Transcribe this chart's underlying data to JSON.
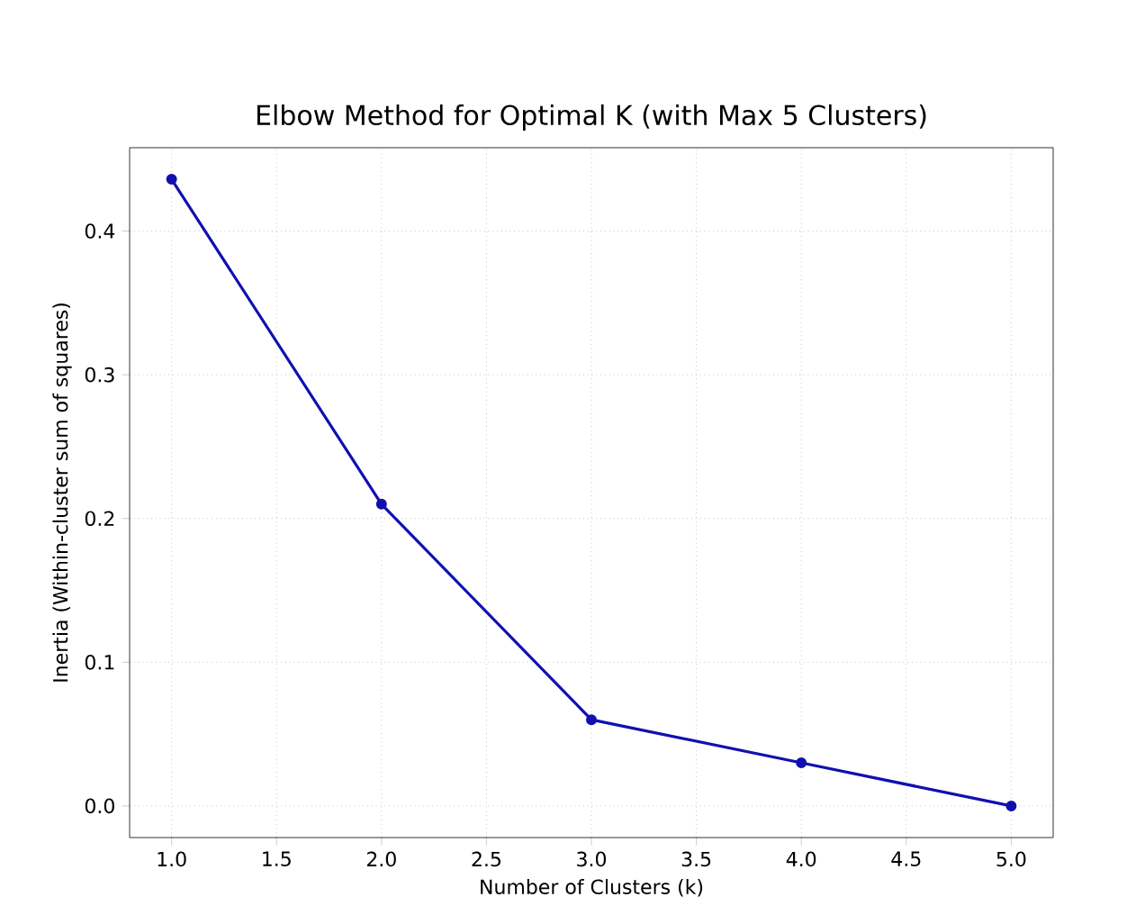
{
  "chart_data": {
    "type": "line",
    "title": "Elbow Method for Optimal K (with Max 5 Clusters)",
    "xlabel": "Number of Clusters (k)",
    "ylabel": "Inertia (Within-cluster sum of squares)",
    "x": [
      1,
      2,
      3,
      4,
      5
    ],
    "series": [
      {
        "color": "#1010b0",
        "values": [
          0.436,
          0.21,
          0.06,
          0.03,
          0.0
        ]
      }
    ],
    "xlim": [
      0.8,
      5.2
    ],
    "ylim": [
      -0.022,
      0.458
    ],
    "xticks": [
      {
        "value": 1,
        "label": "1.0"
      },
      {
        "value": 1.5,
        "label": "1.5"
      },
      {
        "value": 2,
        "label": "2.0"
      },
      {
        "value": 2.5,
        "label": "2.5"
      },
      {
        "value": 3,
        "label": "3.0"
      },
      {
        "value": 3.5,
        "label": "3.5"
      },
      {
        "value": 4,
        "label": "4.0"
      },
      {
        "value": 4.5,
        "label": "4.5"
      },
      {
        "value": 5,
        "label": "5.0"
      }
    ],
    "yticks": [
      {
        "value": 0,
        "label": "0.0"
      },
      {
        "value": 0.1,
        "label": "0.1"
      },
      {
        "value": 0.2,
        "label": "0.2"
      },
      {
        "value": 0.3,
        "label": "0.3"
      },
      {
        "value": 0.4,
        "label": "0.4"
      }
    ],
    "grid": true,
    "marker": "circle",
    "line_style": "solid"
  }
}
